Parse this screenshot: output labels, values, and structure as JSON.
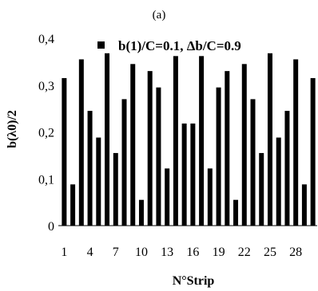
{
  "panel_label": "(a)",
  "chart_data": {
    "type": "bar",
    "xlabel": "N°Strip",
    "ylabel": "b(λ0)/2",
    "ylim": [
      0,
      0.4
    ],
    "y_ticks": [
      "0",
      "0,1",
      "0,2",
      "0,3",
      "0,4"
    ],
    "x_ticks": [
      "1",
      "4",
      "7",
      "10",
      "13",
      "16",
      "19",
      "22",
      "25",
      "28"
    ],
    "legend": "b(1)/C=0.1, Δb/C=0.9",
    "bar_color": "#000000",
    "categories": [
      "1",
      "2",
      "3",
      "4",
      "5",
      "6",
      "7",
      "8",
      "9",
      "10",
      "11",
      "12",
      "13",
      "14",
      "15",
      "16",
      "17",
      "18",
      "19",
      "20",
      "21",
      "22",
      "23",
      "24",
      "25",
      "26",
      "27",
      "28",
      "29",
      "30"
    ],
    "values": [
      0.315,
      0.088,
      0.355,
      0.245,
      0.188,
      0.368,
      0.155,
      0.27,
      0.345,
      0.055,
      0.33,
      0.295,
      0.122,
      0.362,
      0.218,
      0.218,
      0.362,
      0.122,
      0.295,
      0.33,
      0.055,
      0.345,
      0.27,
      0.155,
      0.368,
      0.188,
      0.245,
      0.355,
      0.088,
      0.315
    ]
  }
}
